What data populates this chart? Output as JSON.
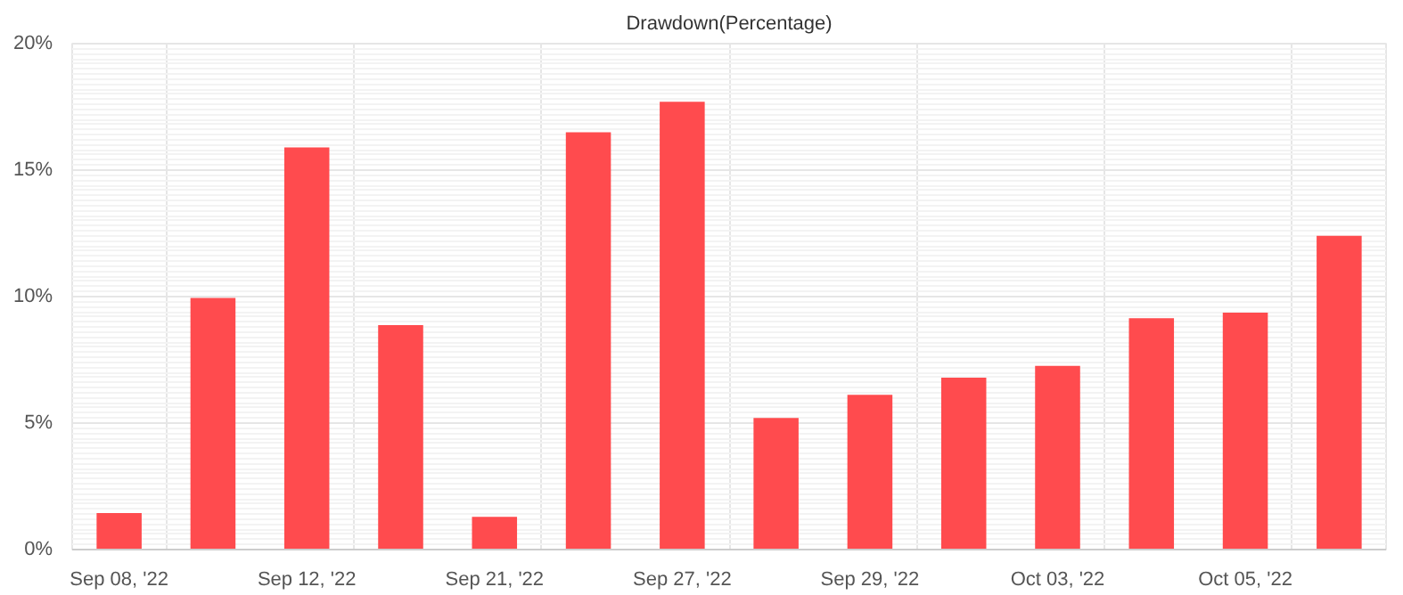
{
  "chart_data": {
    "type": "bar",
    "title": "Drawdown(Percentage)",
    "categories": [
      "Sep 08, '22",
      null,
      "Sep 12, '22",
      null,
      "Sep 21, '22",
      null,
      "Sep 27, '22",
      null,
      "Sep 29, '22",
      null,
      "Oct 03, '22",
      null,
      "Oct 05, '22",
      null
    ],
    "values": [
      1.44,
      9.95,
      15.9,
      8.87,
      1.29,
      16.5,
      17.7,
      5.2,
      6.12,
      6.8,
      7.26,
      9.15,
      9.37,
      12.4
    ],
    "color": "#ff4b4e",
    "ylim": [
      0,
      20
    ],
    "yticks": [
      {
        "value": 0,
        "label": "0%"
      },
      {
        "value": 5,
        "label": "5%"
      },
      {
        "value": 10,
        "label": "10%"
      },
      {
        "value": 15,
        "label": "15%"
      },
      {
        "value": 20,
        "label": "20%"
      }
    ],
    "grid": true
  }
}
